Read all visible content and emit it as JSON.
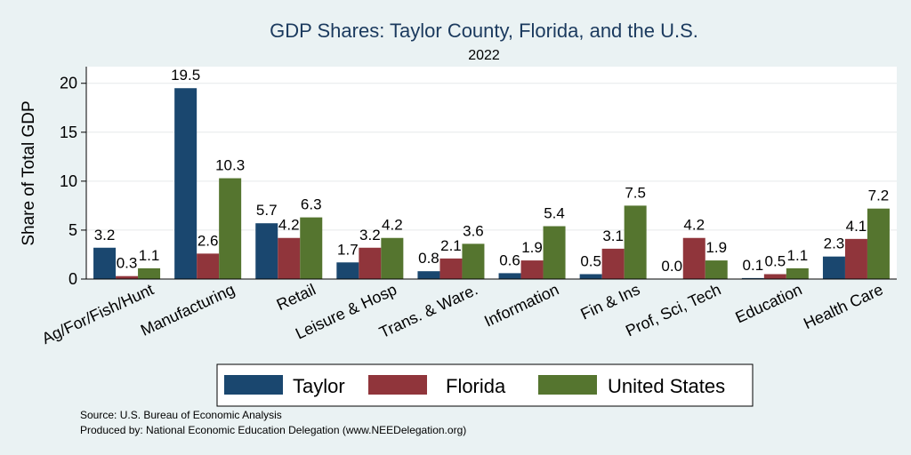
{
  "chart_data": {
    "type": "bar",
    "title": "GDP Shares: Taylor County, Florida, and the U.S.",
    "subtitle": "2022",
    "ylabel": "Share of Total GDP",
    "xlabel": "",
    "ylim": [
      0,
      21.7
    ],
    "yticks": [
      0,
      5,
      10,
      15,
      20
    ],
    "grid": true,
    "legend_position": "bottom",
    "categories": [
      "Ag/For/Fish/Hunt",
      "Manufacturing",
      "Retail",
      "Leisure & Hosp",
      "Trans. & Ware.",
      "Information",
      "Fin & Ins",
      "Prof, Sci, Tech",
      "Education",
      "Health Care"
    ],
    "series": [
      {
        "name": "Taylor",
        "color": "#1a476f",
        "values": [
          3.2,
          19.5,
          5.7,
          1.7,
          0.8,
          0.6,
          0.5,
          0.0,
          0.1,
          2.3
        ],
        "labels": [
          "3.2",
          "19.5",
          "5.7",
          "1.7",
          "0.8",
          "0.6",
          "0.5",
          "0.0",
          "0.1",
          "2.3"
        ]
      },
      {
        "name": "Florida",
        "color": "#90353b",
        "values": [
          0.3,
          2.6,
          4.2,
          3.2,
          2.1,
          1.9,
          3.1,
          4.2,
          0.5,
          4.1
        ],
        "labels": [
          "0.3",
          "2.6",
          "4.2",
          "3.2",
          "2.1",
          "1.9",
          "3.1",
          "4.2",
          "0.5",
          "4.1"
        ]
      },
      {
        "name": "United States",
        "color": "#55752f",
        "values": [
          1.1,
          10.3,
          6.3,
          4.2,
          3.6,
          5.4,
          7.5,
          1.9,
          1.1,
          7.2
        ],
        "labels": [
          "1.1",
          "10.3",
          "6.3",
          "4.2",
          "3.6",
          "5.4",
          "7.5",
          "1.9",
          "1.1",
          "7.2"
        ]
      }
    ]
  },
  "notes": {
    "source": "Source: U.S. Bureau of Economic Analysis",
    "produced_by": "Produced by: National Economic Education Delegation (www.NEEDelegation.org)"
  }
}
